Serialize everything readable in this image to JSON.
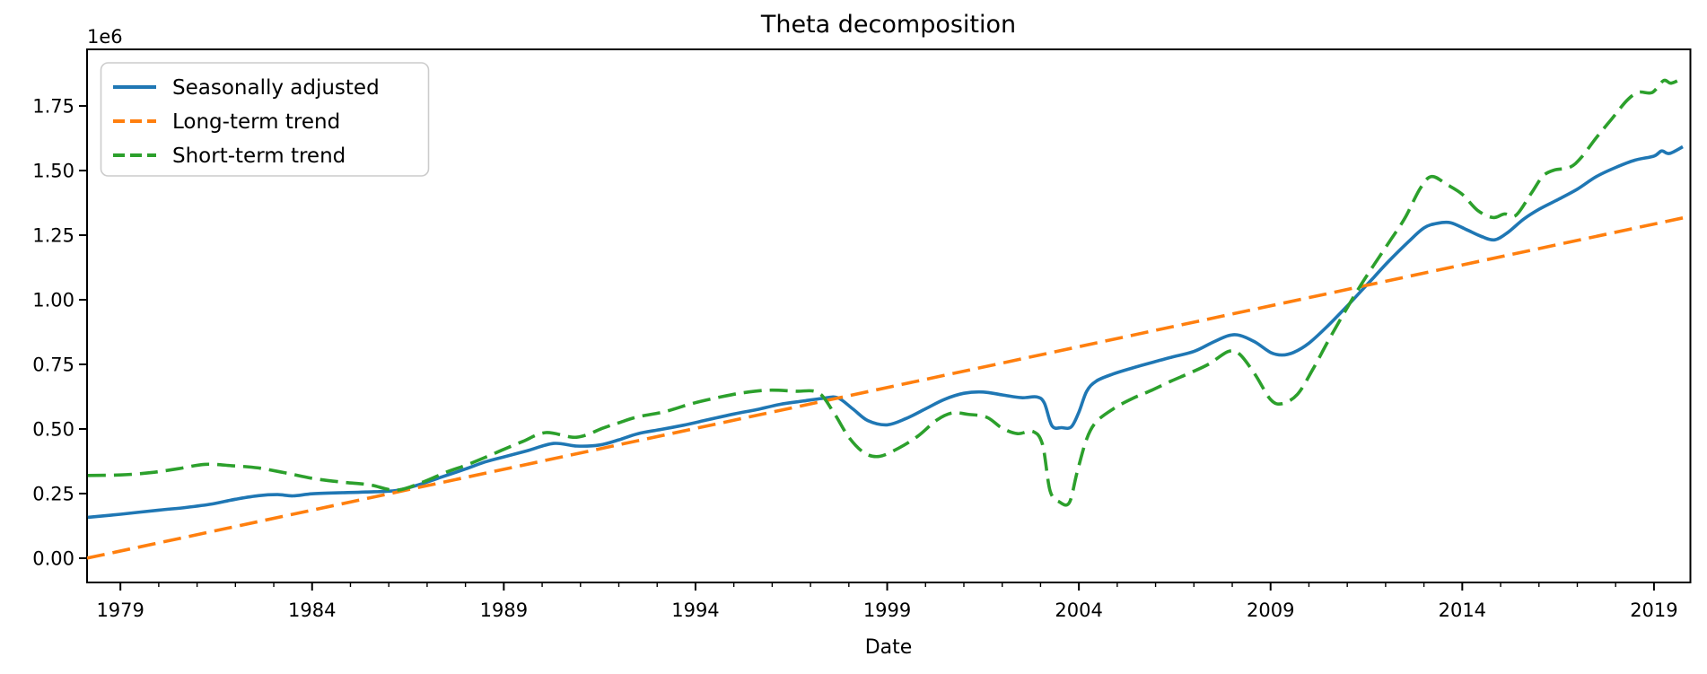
{
  "title": "Theta decomposition",
  "xlabel": "Date",
  "y_offset_label": "1e6",
  "legend": {
    "items": [
      {
        "label": "Seasonally adjusted",
        "color": "#1f77b4",
        "style": "solid"
      },
      {
        "label": "Long-term trend",
        "color": "#ff7f0e",
        "style": "dashed"
      },
      {
        "label": "Short-term trend",
        "color": "#2ca02c",
        "style": "dashed"
      }
    ]
  },
  "chart_data": {
    "type": "line",
    "title": "Theta decomposition",
    "xlabel": "Date",
    "ylabel": "",
    "y_unit_multiplier": "1e6",
    "grid": false,
    "legend_position": "upper left",
    "xlim": [
      1978.13,
      2019.95
    ],
    "ylim": [
      -0.094,
      1.969
    ],
    "x_ticks": [
      1979,
      1984,
      1989,
      1994,
      1999,
      2004,
      2009,
      2014,
      2019
    ],
    "x_minor_tick_interval": 1,
    "y_ticks": [
      0.0,
      0.25,
      0.5,
      0.75,
      1.0,
      1.25,
      1.5,
      1.75
    ],
    "series": [
      {
        "name": "Seasonally adjusted",
        "color": "#1f77b4",
        "style": "solid",
        "points": [
          [
            1978.15,
            0.158
          ],
          [
            1979,
            0.17
          ],
          [
            1980,
            0.186
          ],
          [
            1980.7,
            0.196
          ],
          [
            1981.4,
            0.21
          ],
          [
            1982,
            0.228
          ],
          [
            1982.6,
            0.242
          ],
          [
            1983.1,
            0.246
          ],
          [
            1983.5,
            0.241
          ],
          [
            1984,
            0.249
          ],
          [
            1984.7,
            0.253
          ],
          [
            1985.4,
            0.256
          ],
          [
            1986.2,
            0.262
          ],
          [
            1986.8,
            0.285
          ],
          [
            1987.4,
            0.315
          ],
          [
            1988,
            0.345
          ],
          [
            1988.5,
            0.372
          ],
          [
            1989,
            0.392
          ],
          [
            1989.6,
            0.415
          ],
          [
            1990.3,
            0.444
          ],
          [
            1990.9,
            0.434
          ],
          [
            1991.5,
            0.438
          ],
          [
            1992,
            0.458
          ],
          [
            1992.5,
            0.482
          ],
          [
            1993.1,
            0.498
          ],
          [
            1993.7,
            0.515
          ],
          [
            1994.3,
            0.535
          ],
          [
            1995,
            0.558
          ],
          [
            1995.6,
            0.575
          ],
          [
            1996.2,
            0.595
          ],
          [
            1996.8,
            0.608
          ],
          [
            1997.3,
            0.618
          ],
          [
            1997.7,
            0.621
          ],
          [
            1998.1,
            0.578
          ],
          [
            1998.5,
            0.532
          ],
          [
            1999,
            0.516
          ],
          [
            1999.5,
            0.541
          ],
          [
            2000,
            0.578
          ],
          [
            2000.5,
            0.615
          ],
          [
            2001,
            0.638
          ],
          [
            2001.5,
            0.643
          ],
          [
            2002,
            0.632
          ],
          [
            2002.5,
            0.621
          ],
          [
            2002.9,
            0.624
          ],
          [
            2003.1,
            0.6
          ],
          [
            2003.3,
            0.512
          ],
          [
            2003.55,
            0.505
          ],
          [
            2003.8,
            0.508
          ],
          [
            2004,
            0.565
          ],
          [
            2004.2,
            0.645
          ],
          [
            2004.45,
            0.685
          ],
          [
            2004.9,
            0.713
          ],
          [
            2005.4,
            0.736
          ],
          [
            2005.9,
            0.757
          ],
          [
            2006.4,
            0.777
          ],
          [
            2007,
            0.8
          ],
          [
            2007.5,
            0.836
          ],
          [
            2007.9,
            0.861
          ],
          [
            2008.2,
            0.862
          ],
          [
            2008.6,
            0.836
          ],
          [
            2009,
            0.796
          ],
          [
            2009.3,
            0.786
          ],
          [
            2009.6,
            0.796
          ],
          [
            2010,
            0.832
          ],
          [
            2010.5,
            0.9
          ],
          [
            2011,
            0.976
          ],
          [
            2011.35,
            1.032
          ],
          [
            2011.7,
            1.088
          ],
          [
            2012.1,
            1.152
          ],
          [
            2012.6,
            1.225
          ],
          [
            2013,
            1.278
          ],
          [
            2013.35,
            1.296
          ],
          [
            2013.7,
            1.298
          ],
          [
            2014.1,
            1.272
          ],
          [
            2014.5,
            1.245
          ],
          [
            2014.85,
            1.232
          ],
          [
            2015.2,
            1.262
          ],
          [
            2015.6,
            1.312
          ],
          [
            2016,
            1.35
          ],
          [
            2016.5,
            1.388
          ],
          [
            2017,
            1.428
          ],
          [
            2017.5,
            1.477
          ],
          [
            2018,
            1.512
          ],
          [
            2018.5,
            1.54
          ],
          [
            2019,
            1.556
          ],
          [
            2019.2,
            1.576
          ],
          [
            2019.4,
            1.566
          ],
          [
            2019.75,
            1.592
          ]
        ]
      },
      {
        "name": "Long-term trend",
        "color": "#ff7f0e",
        "style": "dashed",
        "points": [
          [
            1978.13,
            0.0
          ],
          [
            2019.95,
            1.323
          ]
        ]
      },
      {
        "name": "Short-term trend",
        "color": "#2ca02c",
        "style": "dashed",
        "points": [
          [
            1978.15,
            0.32
          ],
          [
            1979,
            0.322
          ],
          [
            1979.8,
            0.331
          ],
          [
            1980.5,
            0.346
          ],
          [
            1981.2,
            0.363
          ],
          [
            1981.9,
            0.358
          ],
          [
            1982.6,
            0.349
          ],
          [
            1983.3,
            0.33
          ],
          [
            1984,
            0.309
          ],
          [
            1984.8,
            0.294
          ],
          [
            1985.5,
            0.284
          ],
          [
            1986.2,
            0.263
          ],
          [
            1986.9,
            0.295
          ],
          [
            1987.5,
            0.333
          ],
          [
            1988,
            0.359
          ],
          [
            1988.5,
            0.389
          ],
          [
            1989,
            0.421
          ],
          [
            1989.5,
            0.452
          ],
          [
            1990.1,
            0.486
          ],
          [
            1990.9,
            0.468
          ],
          [
            1991.6,
            0.504
          ],
          [
            1992,
            0.524
          ],
          [
            1992.5,
            0.547
          ],
          [
            1993.2,
            0.567
          ],
          [
            1993.9,
            0.598
          ],
          [
            1994.6,
            0.622
          ],
          [
            1995.2,
            0.639
          ],
          [
            1995.9,
            0.65
          ],
          [
            1996.6,
            0.646
          ],
          [
            1997.2,
            0.641
          ],
          [
            1997.6,
            0.565
          ],
          [
            1998,
            0.468
          ],
          [
            1998.4,
            0.408
          ],
          [
            1998.8,
            0.394
          ],
          [
            1999.3,
            0.426
          ],
          [
            1999.8,
            0.472
          ],
          [
            2000.3,
            0.535
          ],
          [
            2000.7,
            0.562
          ],
          [
            2001.1,
            0.557
          ],
          [
            2001.6,
            0.545
          ],
          [
            2002,
            0.503
          ],
          [
            2002.4,
            0.482
          ],
          [
            2002.8,
            0.49
          ],
          [
            2003.05,
            0.44
          ],
          [
            2003.25,
            0.26
          ],
          [
            2003.5,
            0.217
          ],
          [
            2003.75,
            0.215
          ],
          [
            2003.95,
            0.33
          ],
          [
            2004.2,
            0.46
          ],
          [
            2004.45,
            0.527
          ],
          [
            2004.9,
            0.578
          ],
          [
            2005.4,
            0.618
          ],
          [
            2005.9,
            0.65
          ],
          [
            2006.4,
            0.685
          ],
          [
            2006.9,
            0.717
          ],
          [
            2007.4,
            0.752
          ],
          [
            2007.9,
            0.8
          ],
          [
            2008.2,
            0.788
          ],
          [
            2008.6,
            0.71
          ],
          [
            2009,
            0.614
          ],
          [
            2009.3,
            0.598
          ],
          [
            2009.7,
            0.634
          ],
          [
            2010.1,
            0.73
          ],
          [
            2010.5,
            0.84
          ],
          [
            2010.9,
            0.944
          ],
          [
            2011.3,
            1.044
          ],
          [
            2011.7,
            1.136
          ],
          [
            2012.1,
            1.225
          ],
          [
            2012.5,
            1.315
          ],
          [
            2012.9,
            1.43
          ],
          [
            2013.2,
            1.477
          ],
          [
            2013.6,
            1.446
          ],
          [
            2014,
            1.408
          ],
          [
            2014.4,
            1.346
          ],
          [
            2014.8,
            1.318
          ],
          [
            2015.1,
            1.332
          ],
          [
            2015.4,
            1.327
          ],
          [
            2015.8,
            1.412
          ],
          [
            2016.1,
            1.478
          ],
          [
            2016.4,
            1.502
          ],
          [
            2016.8,
            1.512
          ],
          [
            2017.1,
            1.55
          ],
          [
            2017.5,
            1.628
          ],
          [
            2017.9,
            1.7
          ],
          [
            2018.3,
            1.772
          ],
          [
            2018.6,
            1.803
          ],
          [
            2018.95,
            1.802
          ],
          [
            2019.25,
            1.848
          ],
          [
            2019.45,
            1.838
          ],
          [
            2019.75,
            1.858
          ]
        ]
      }
    ]
  }
}
